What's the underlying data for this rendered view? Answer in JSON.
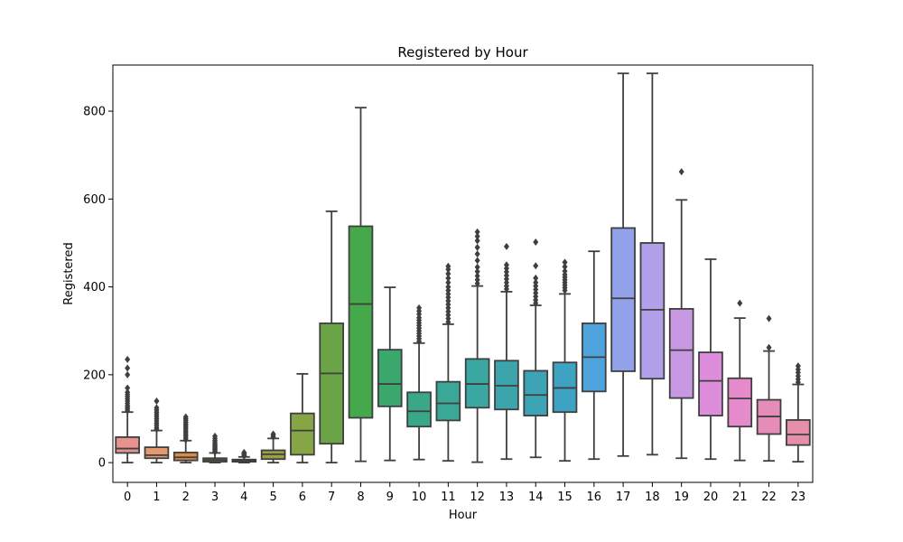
{
  "chart_data": {
    "type": "box",
    "title": "Registered by Hour",
    "xlabel": "Hour",
    "ylabel": "Registered",
    "ylim": [
      -45,
      905
    ],
    "yticks": [
      0,
      200,
      400,
      600,
      800
    ],
    "grid": false,
    "legend": "none",
    "categories": [
      "0",
      "1",
      "2",
      "3",
      "4",
      "5",
      "6",
      "7",
      "8",
      "9",
      "10",
      "11",
      "12",
      "13",
      "14",
      "15",
      "16",
      "17",
      "18",
      "19",
      "20",
      "21",
      "22",
      "23"
    ],
    "boxes": [
      {
        "hour": "0",
        "color": "#e8928e",
        "min": 0,
        "q1": 22,
        "median": 32,
        "q3": 58,
        "max": 115,
        "outliers": [
          118,
          122,
          126,
          130,
          135,
          140,
          145,
          150,
          155,
          160,
          170,
          200,
          215,
          235
        ]
      },
      {
        "hour": "1",
        "color": "#e49a70",
        "min": 0,
        "q1": 10,
        "median": 17,
        "q3": 35,
        "max": 73,
        "outliers": [
          76,
          80,
          85,
          90,
          95,
          100,
          105,
          110,
          115,
          120,
          125,
          140
        ]
      },
      {
        "hour": "2",
        "color": "#d98b4a",
        "min": 0,
        "q1": 5,
        "median": 12,
        "q3": 23,
        "max": 50,
        "outliers": [
          52,
          56,
          60,
          64,
          68,
          72,
          76,
          80,
          84,
          88,
          92,
          96,
          100,
          104
        ]
      },
      {
        "hour": "3",
        "color": "#c08f46",
        "min": 0,
        "q1": 2,
        "median": 6,
        "q3": 10,
        "max": 22,
        "outliers": [
          24,
          27,
          30,
          33,
          36,
          39,
          42,
          46,
          50,
          55,
          60
        ]
      },
      {
        "hour": "4",
        "color": "#ac9646",
        "min": 0,
        "q1": 2,
        "median": 4,
        "q3": 7,
        "max": 13,
        "outliers": [
          15,
          17,
          19,
          21,
          23
        ]
      },
      {
        "hour": "5",
        "color": "#9aa043",
        "min": 0,
        "q1": 8,
        "median": 19,
        "q3": 28,
        "max": 55,
        "outliers": [
          58,
          62,
          65
        ]
      },
      {
        "hour": "6",
        "color": "#86a646",
        "min": 0,
        "q1": 18,
        "median": 73,
        "q3": 112,
        "max": 202,
        "outliers": []
      },
      {
        "hour": "7",
        "color": "#6aa446",
        "min": 0,
        "q1": 43,
        "median": 203,
        "q3": 317,
        "max": 572,
        "outliers": []
      },
      {
        "hour": "8",
        "color": "#45a84a",
        "min": 3,
        "q1": 102,
        "median": 361,
        "q3": 538,
        "max": 808,
        "outliers": []
      },
      {
        "hour": "9",
        "color": "#3aa76c",
        "min": 5,
        "q1": 128,
        "median": 179,
        "q3": 257,
        "max": 399,
        "outliers": []
      },
      {
        "hour": "10",
        "color": "#3aa888",
        "min": 7,
        "q1": 82,
        "median": 117,
        "q3": 160,
        "max": 272,
        "outliers": [
          276,
          282,
          288,
          294,
          300,
          306,
          312,
          318,
          324,
          330,
          338,
          345,
          352
        ]
      },
      {
        "hour": "11",
        "color": "#3ba897",
        "min": 4,
        "q1": 96,
        "median": 135,
        "q3": 184,
        "max": 315,
        "outliers": [
          320,
          328,
          336,
          344,
          352,
          360,
          368,
          376,
          384,
          392,
          400,
          410,
          420,
          430,
          440,
          447
        ]
      },
      {
        "hour": "12",
        "color": "#3ba7a2",
        "min": 1,
        "q1": 125,
        "median": 179,
        "q3": 236,
        "max": 402,
        "outliers": [
          408,
          416,
          425,
          435,
          445,
          460,
          475,
          490,
          505,
          515,
          525
        ]
      },
      {
        "hour": "13",
        "color": "#3ca5ab",
        "min": 8,
        "q1": 121,
        "median": 175,
        "q3": 232,
        "max": 389,
        "outliers": [
          395,
          402,
          410,
          418,
          426,
          434,
          442,
          450,
          492
        ]
      },
      {
        "hour": "14",
        "color": "#3da4b5",
        "min": 12,
        "q1": 107,
        "median": 154,
        "q3": 209,
        "max": 358,
        "outliers": [
          363,
          370,
          378,
          386,
          394,
          402,
          410,
          420,
          448,
          502
        ]
      },
      {
        "hour": "15",
        "color": "#3ea3c3",
        "min": 4,
        "q1": 115,
        "median": 170,
        "q3": 228,
        "max": 384,
        "outliers": [
          392,
          398,
          404,
          410,
          416,
          422,
          428,
          436,
          446,
          456
        ]
      },
      {
        "hour": "16",
        "color": "#4ea3dc",
        "min": 8,
        "q1": 162,
        "median": 240,
        "q3": 317,
        "max": 481,
        "outliers": []
      },
      {
        "hour": "17",
        "color": "#92a2ea",
        "min": 15,
        "q1": 208,
        "median": 374,
        "q3": 534,
        "max": 886,
        "outliers": []
      },
      {
        "hour": "18",
        "color": "#b3a0ea",
        "min": 18,
        "q1": 191,
        "median": 348,
        "q3": 500,
        "max": 886,
        "outliers": []
      },
      {
        "hour": "19",
        "color": "#c898e3",
        "min": 10,
        "q1": 147,
        "median": 256,
        "q3": 350,
        "max": 598,
        "outliers": [
          662
        ]
      },
      {
        "hour": "20",
        "color": "#dd8ddc",
        "min": 8,
        "q1": 107,
        "median": 186,
        "q3": 251,
        "max": 463,
        "outliers": []
      },
      {
        "hour": "21",
        "color": "#e58bcb",
        "min": 5,
        "q1": 82,
        "median": 146,
        "q3": 192,
        "max": 329,
        "outliers": [
          363
        ]
      },
      {
        "hour": "22",
        "color": "#e58cb9",
        "min": 4,
        "q1": 65,
        "median": 105,
        "q3": 143,
        "max": 254,
        "outliers": [
          262,
          328
        ]
      },
      {
        "hour": "23",
        "color": "#e58fa9",
        "min": 2,
        "q1": 40,
        "median": 64,
        "q3": 97,
        "max": 178,
        "outliers": [
          183,
          190,
          197,
          205,
          212,
          220
        ]
      }
    ]
  }
}
